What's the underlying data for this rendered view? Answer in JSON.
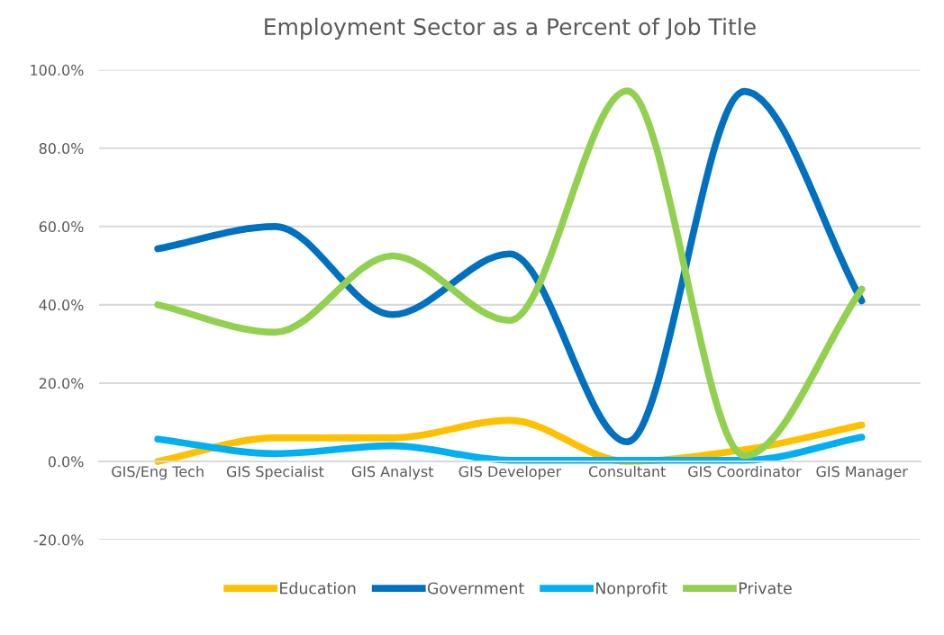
{
  "chart_data": {
    "type": "line",
    "title": "Employment Sector as a Percent of Job Title",
    "categories": [
      "GIS/Eng Tech",
      "GIS Specialist",
      "GIS Analyst",
      "GIS Developer",
      "Consultant",
      "GIS Coordinator",
      "GIS Manager"
    ],
    "series": [
      {
        "name": "Education",
        "color": "#ffc000",
        "values": [
          0,
          6,
          6,
          10.5,
          0,
          3,
          9.3
        ]
      },
      {
        "name": "Government",
        "color": "#0070c0",
        "values": [
          54.3,
          60,
          37.5,
          53,
          5,
          94.5,
          41
        ]
      },
      {
        "name": "Nonprofit",
        "color": "#00b0f0",
        "values": [
          5.7,
          2,
          4,
          0.3,
          0.3,
          0.3,
          6.2
        ]
      },
      {
        "name": "Private",
        "color": "#92d050",
        "values": [
          40,
          33,
          52.5,
          36,
          94.6,
          1.5,
          44
        ]
      }
    ],
    "ylim": [
      -20,
      100
    ],
    "yticks": [
      {
        "value": -20,
        "label": "-20.0%"
      },
      {
        "value": 0,
        "label": "0.0%"
      },
      {
        "value": 20,
        "label": "20.0%"
      },
      {
        "value": 40,
        "label": "40.0%"
      },
      {
        "value": 60,
        "label": "60.0%"
      },
      {
        "value": 80,
        "label": "80.0%"
      },
      {
        "value": 100,
        "label": "100.0%"
      }
    ],
    "grid": "y",
    "legend": "bottom",
    "marker": "none",
    "line_style": "solid"
  }
}
